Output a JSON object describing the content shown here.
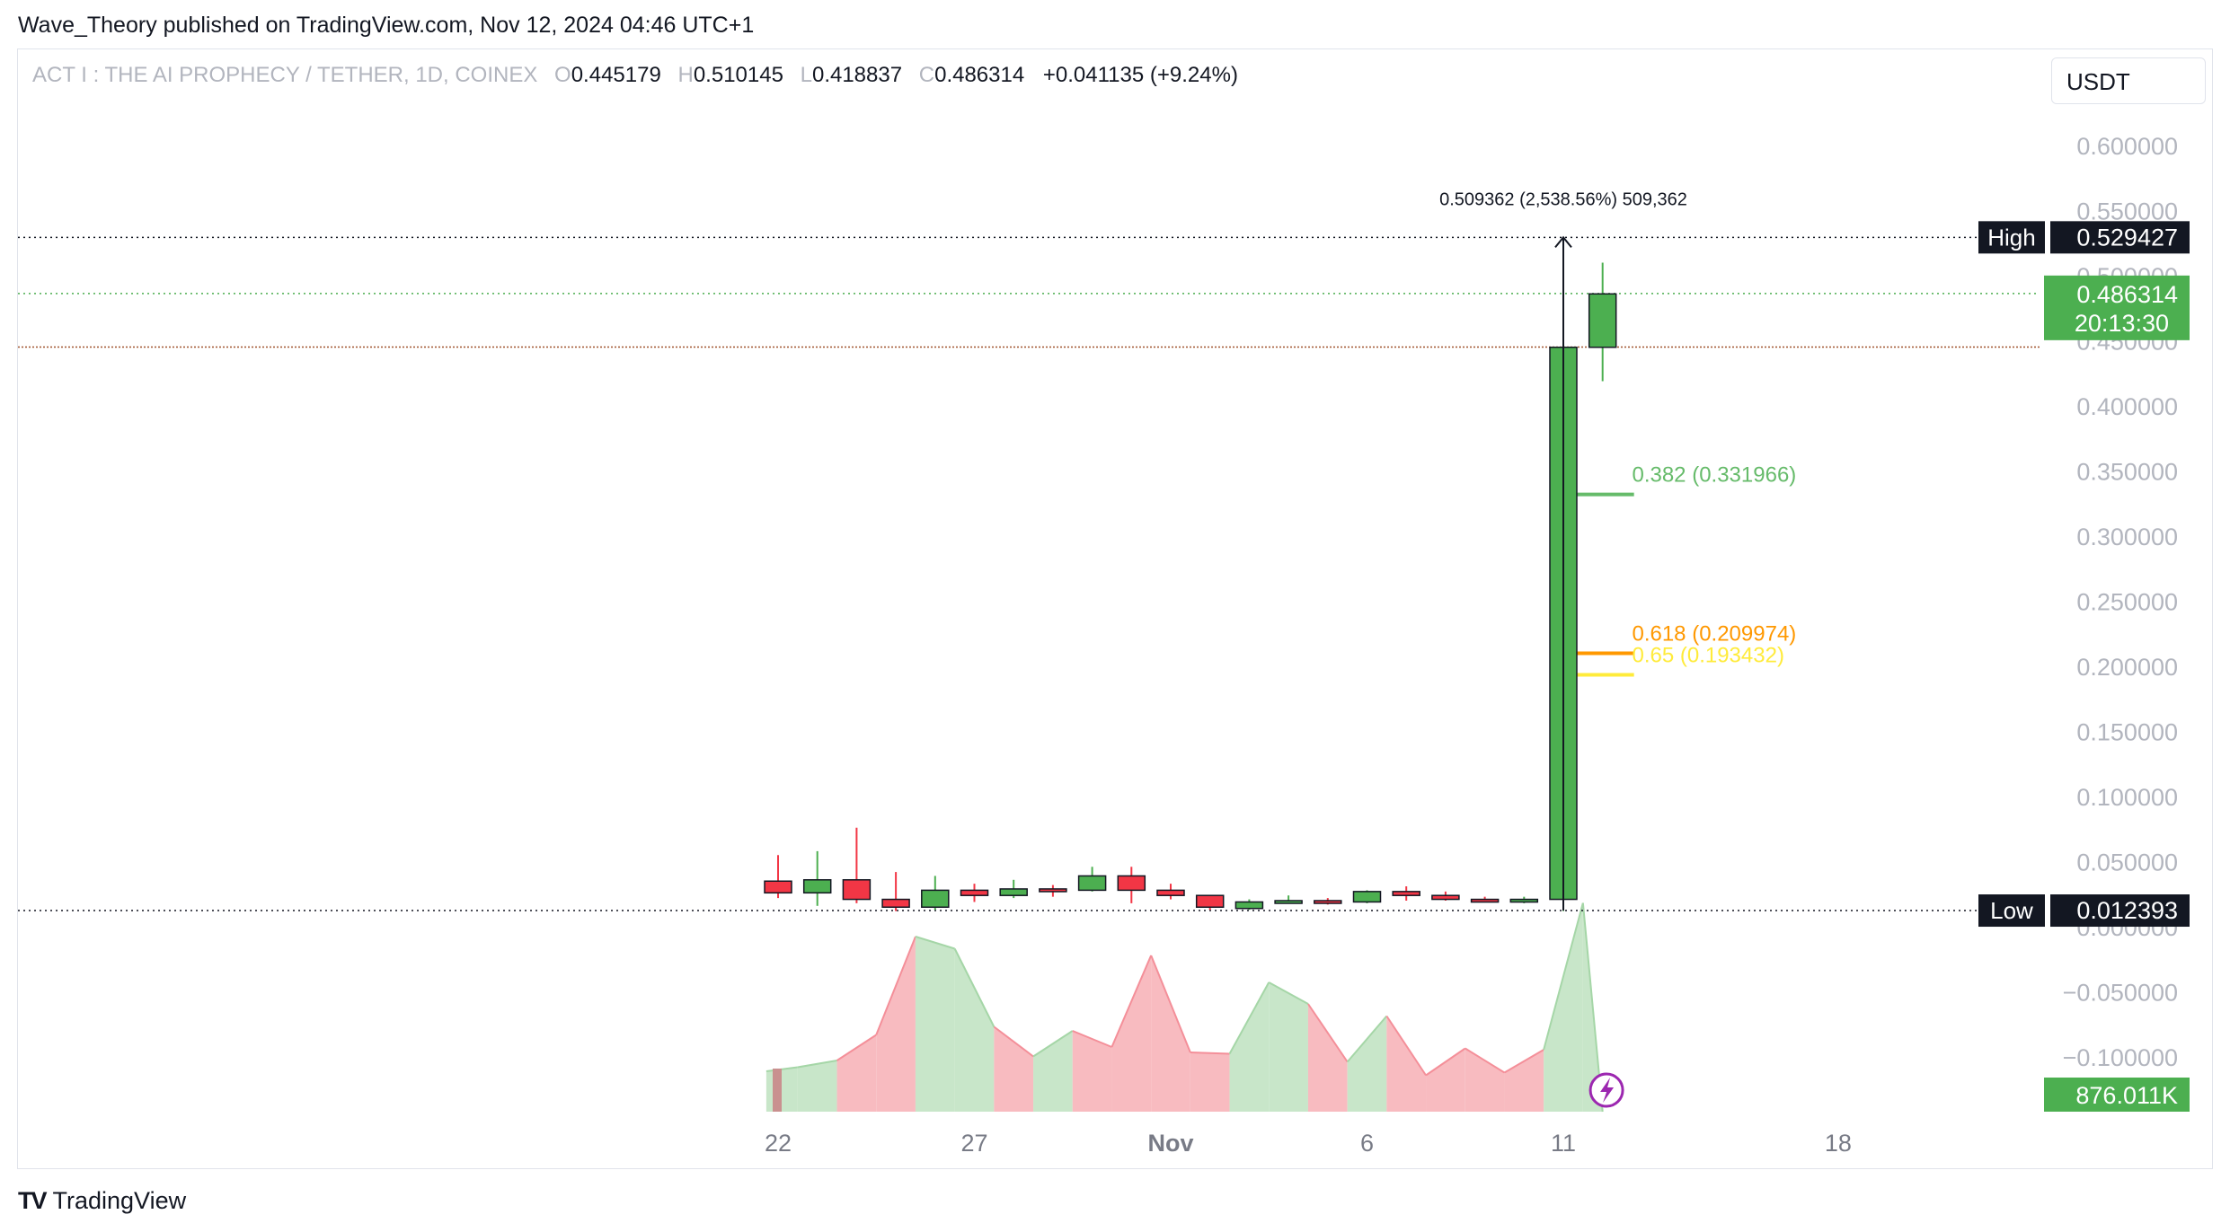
{
  "publisher_line": "Wave_Theory published on TradingView.com, Nov 12, 2024 04:46 UTC+1",
  "legend": {
    "symbol": "ACT I : THE AI PROPHECY / TETHER, 1D, COINEX",
    "open_label": "O",
    "open": "0.445179",
    "high_label": "H",
    "high": "0.510145",
    "low_label": "L",
    "low": "0.418837",
    "close_label": "C",
    "close": "0.486314",
    "change": "+0.041135 (+9.24%)"
  },
  "currency": "USDT",
  "footer": {
    "logo": "TV",
    "brand": "TradingView"
  },
  "colors": {
    "up": "#4caf50",
    "down": "#f23645",
    "fib_382": "#66bb6a",
    "fib_618": "#ff9800",
    "fib_65": "#ffeb3b",
    "vol_up": "#c8e6c9",
    "vol_down": "#f8bbc0",
    "accent": "#9c27b0"
  },
  "chart_data": {
    "type": "candlestick",
    "ylim": [
      -0.12,
      0.64
    ],
    "y_ticks": [
      "0.600000",
      "0.550000",
      "0.500000",
      "0.450000",
      "0.400000",
      "0.350000",
      "0.300000",
      "0.250000",
      "0.200000",
      "0.150000",
      "0.100000",
      "0.050000",
      "0.000000",
      "−0.050000",
      "−0.100000"
    ],
    "y_tick_values": [
      0.6,
      0.55,
      0.5,
      0.45,
      0.4,
      0.35,
      0.3,
      0.25,
      0.2,
      0.15,
      0.1,
      0.05,
      0.0,
      -0.05,
      -0.1
    ],
    "x_ticks": [
      {
        "label": "22",
        "day": 22
      },
      {
        "label": "27",
        "day": 27
      },
      {
        "label": "Nov",
        "day": 32
      },
      {
        "label": "6",
        "day": 37
      },
      {
        "label": "11",
        "day": 42
      },
      {
        "label": "18",
        "day": 49
      }
    ],
    "x_range_days": [
      22,
      42
    ],
    "candles": [
      {
        "day": 22,
        "o": 0.035,
        "h": 0.055,
        "l": 0.022,
        "c": 0.026
      },
      {
        "day": 23,
        "o": 0.026,
        "h": 0.058,
        "l": 0.016,
        "c": 0.036
      },
      {
        "day": 24,
        "o": 0.036,
        "h": 0.076,
        "l": 0.018,
        "c": 0.021
      },
      {
        "day": 25,
        "o": 0.021,
        "h": 0.042,
        "l": 0.012,
        "c": 0.015
      },
      {
        "day": 26,
        "o": 0.015,
        "h": 0.039,
        "l": 0.013,
        "c": 0.028
      },
      {
        "day": 27,
        "o": 0.028,
        "h": 0.033,
        "l": 0.019,
        "c": 0.024
      },
      {
        "day": 28,
        "o": 0.024,
        "h": 0.036,
        "l": 0.022,
        "c": 0.029
      },
      {
        "day": 29,
        "o": 0.029,
        "h": 0.032,
        "l": 0.023,
        "c": 0.028
      },
      {
        "day": 30,
        "o": 0.028,
        "h": 0.046,
        "l": 0.027,
        "c": 0.039
      },
      {
        "day": 31,
        "o": 0.039,
        "h": 0.046,
        "l": 0.018,
        "c": 0.028
      },
      {
        "day": 32,
        "o": 0.028,
        "h": 0.033,
        "l": 0.021,
        "c": 0.024
      },
      {
        "day": 33,
        "o": 0.024,
        "h": 0.024,
        "l": 0.013,
        "c": 0.015
      },
      {
        "day": 34,
        "o": 0.014,
        "h": 0.021,
        "l": 0.013,
        "c": 0.019
      },
      {
        "day": 35,
        "o": 0.019,
        "h": 0.024,
        "l": 0.018,
        "c": 0.02
      },
      {
        "day": 36,
        "o": 0.02,
        "h": 0.022,
        "l": 0.017,
        "c": 0.019
      },
      {
        "day": 37,
        "o": 0.019,
        "h": 0.028,
        "l": 0.018,
        "c": 0.027
      },
      {
        "day": 38,
        "o": 0.027,
        "h": 0.031,
        "l": 0.02,
        "c": 0.024
      },
      {
        "day": 39,
        "o": 0.024,
        "h": 0.027,
        "l": 0.02,
        "c": 0.021
      },
      {
        "day": 40,
        "o": 0.021,
        "h": 0.023,
        "l": 0.019,
        "c": 0.02
      },
      {
        "day": 41,
        "o": 0.02,
        "h": 0.023,
        "l": 0.018,
        "c": 0.021
      },
      {
        "day": 42,
        "o": 0.021,
        "h": 0.529,
        "l": 0.012,
        "c": 0.445
      },
      {
        "day": 43,
        "o": 0.445,
        "h": 0.51,
        "l": 0.419,
        "c": 0.486
      }
    ],
    "volume_profile": [
      {
        "day": 21.7,
        "v": 0.3,
        "up": false
      },
      {
        "day": 22.5,
        "v": 0.33,
        "up": true
      },
      {
        "day": 23.5,
        "v": 0.38,
        "up": true
      },
      {
        "day": 24.5,
        "v": 0.57,
        "up": false
      },
      {
        "day": 25.5,
        "v": 1.3,
        "up": false
      },
      {
        "day": 26.5,
        "v": 1.21,
        "up": true
      },
      {
        "day": 27.5,
        "v": 0.63,
        "up": true
      },
      {
        "day": 28.5,
        "v": 0.41,
        "up": false
      },
      {
        "day": 29.5,
        "v": 0.6,
        "up": true
      },
      {
        "day": 30.5,
        "v": 0.48,
        "up": false
      },
      {
        "day": 31.5,
        "v": 1.16,
        "up": false
      },
      {
        "day": 32.5,
        "v": 0.44,
        "up": false
      },
      {
        "day": 33.5,
        "v": 0.43,
        "up": false
      },
      {
        "day": 34.5,
        "v": 0.96,
        "up": true
      },
      {
        "day": 35.5,
        "v": 0.8,
        "up": true
      },
      {
        "day": 36.5,
        "v": 0.37,
        "up": false
      },
      {
        "day": 37.5,
        "v": 0.71,
        "up": true
      },
      {
        "day": 38.5,
        "v": 0.27,
        "up": false
      },
      {
        "day": 39.5,
        "v": 0.47,
        "up": false
      },
      {
        "day": 40.5,
        "v": 0.29,
        "up": false
      },
      {
        "day": 41.5,
        "v": 0.46,
        "up": false
      },
      {
        "day": 42.5,
        "v": 1.55,
        "up": true
      },
      {
        "day": 43.0,
        "v": 0.0,
        "up": true
      }
    ],
    "volume_label": "876.011K",
    "high_level": {
      "label": "High",
      "value": 0.529427,
      "text": "0.529427"
    },
    "low_level": {
      "label": "Low",
      "value": 0.012393,
      "text": "0.012393"
    },
    "last_price": {
      "value": 0.486314,
      "text": "0.486314",
      "countdown": "20:13:30"
    },
    "prev_close_line": 0.445179,
    "measure_note": "0.509362 (2,538.56%) 509,362",
    "fibs": [
      {
        "text": "0.382 (0.331966)",
        "value": 0.331966,
        "color": "#66bb6a"
      },
      {
        "text": "0.618 (0.209974)",
        "value": 0.209974,
        "color": "#ff9800"
      },
      {
        "text": "0.65 (0.193432)",
        "value": 0.193432,
        "color": "#ffeb3b"
      }
    ]
  }
}
